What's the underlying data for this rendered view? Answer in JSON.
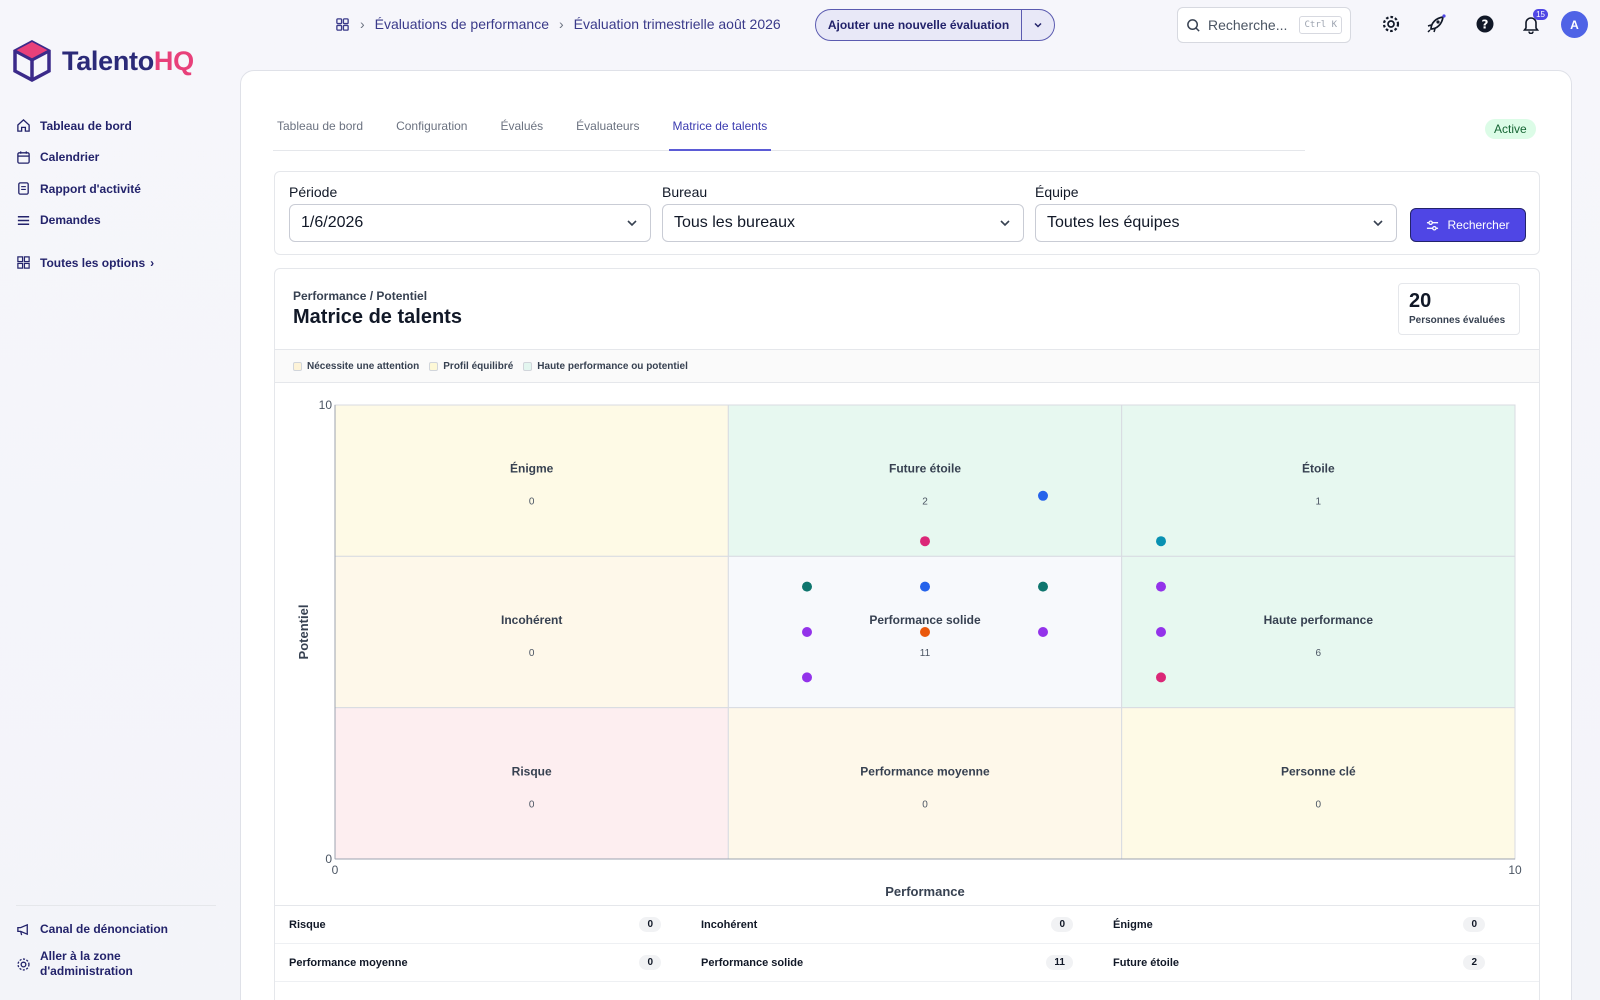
{
  "brand": {
    "name_a": "Talento",
    "name_b": "HQ"
  },
  "sidebar": {
    "items": [
      {
        "label": "Tableau de bord",
        "icon": "home-icon"
      },
      {
        "label": "Calendrier",
        "icon": "calendar-icon"
      },
      {
        "label": "Rapport d'activité",
        "icon": "report-icon"
      },
      {
        "label": "Demandes",
        "icon": "list-icon"
      }
    ],
    "all_options": "Toutes les options",
    "bottom": [
      {
        "label": "Canal de dénonciation",
        "icon": "megaphone-icon"
      },
      {
        "label": "Aller à la zone d'administration",
        "icon": "admin-gear-icon"
      }
    ]
  },
  "breadcrumb": [
    "Évaluations de performance",
    "Évaluation trimestrielle août 2026"
  ],
  "header": {
    "new_eval_label": "Ajouter une nouvelle évaluation",
    "search_placeholder": "Recherche...",
    "search_shortcut": "Ctrl K",
    "notifications_count": "15",
    "avatar_initial": "A"
  },
  "tabs": [
    "Tableau de bord",
    "Configuration",
    "Évalués",
    "Évaluateurs",
    "Matrice de talents"
  ],
  "active_tab": 4,
  "status": "Active",
  "filters": {
    "period": {
      "label": "Période",
      "value": "1/6/2026"
    },
    "office": {
      "label": "Bureau",
      "value": "Tous les bureaux"
    },
    "team": {
      "label": "Équipe",
      "value": "Toutes les équipes"
    },
    "search_button": "Rechercher"
  },
  "card": {
    "subtitle": "Performance / Potentiel",
    "title": "Matrice de talents",
    "count": "20",
    "count_label": "Personnes évaluées"
  },
  "legend": [
    {
      "label": "Nécessite une attention",
      "color": "#fdf3d8"
    },
    {
      "label": "Profil équilibré",
      "color": "#fdf8d6"
    },
    {
      "label": "Haute performance ou potentiel",
      "color": "#e3f6ef"
    }
  ],
  "chart_data": {
    "type": "scatter",
    "xlabel": "Performance",
    "ylabel": "Potentiel",
    "xlim": [
      0,
      10
    ],
    "ylim": [
      0,
      10
    ],
    "cells": [
      {
        "name": "Énigme",
        "count": "0",
        "col": 0,
        "row": 2,
        "color": "#fefae6"
      },
      {
        "name": "Future étoile",
        "count": "2",
        "col": 1,
        "row": 2,
        "color": "#e7f8f0"
      },
      {
        "name": "Étoile",
        "count": "1",
        "col": 2,
        "row": 2,
        "color": "#e7f8f0"
      },
      {
        "name": "Incohérent",
        "count": "0",
        "col": 0,
        "row": 1,
        "color": "#fef8ea"
      },
      {
        "name": "Performance solide",
        "count": "11",
        "col": 1,
        "row": 1,
        "color": "#f7f9fc"
      },
      {
        "name": "Haute performance",
        "count": "6",
        "col": 2,
        "row": 1,
        "color": "#e7f8f0"
      },
      {
        "name": "Risque",
        "count": "0",
        "col": 0,
        "row": 0,
        "color": "#fdeef0"
      },
      {
        "name": "Performance moyenne",
        "count": "0",
        "col": 1,
        "row": 0,
        "color": "#fef8ea"
      },
      {
        "name": "Personne clé",
        "count": "0",
        "col": 2,
        "row": 0,
        "color": "#fefae6"
      }
    ],
    "points": [
      {
        "x": 6.0,
        "y": 8.0,
        "color": "#2563eb"
      },
      {
        "x": 5.0,
        "y": 7.0,
        "color": "#db2777"
      },
      {
        "x": 7.0,
        "y": 7.0,
        "color": "#0891b2"
      },
      {
        "x": 4.0,
        "y": 6.0,
        "color": "#0f766e"
      },
      {
        "x": 5.0,
        "y": 6.0,
        "color": "#2563eb"
      },
      {
        "x": 6.0,
        "y": 6.0,
        "color": "#0f766e"
      },
      {
        "x": 7.0,
        "y": 6.0,
        "color": "#9333ea"
      },
      {
        "x": 4.0,
        "y": 5.0,
        "color": "#9333ea"
      },
      {
        "x": 5.0,
        "y": 5.0,
        "color": "#ea580c"
      },
      {
        "x": 6.0,
        "y": 5.0,
        "color": "#9333ea"
      },
      {
        "x": 7.0,
        "y": 5.0,
        "color": "#9333ea"
      },
      {
        "x": 4.0,
        "y": 4.0,
        "color": "#9333ea"
      },
      {
        "x": 7.0,
        "y": 4.0,
        "color": "#db2777"
      }
    ]
  },
  "summary": [
    [
      {
        "name": "Risque",
        "count": "0"
      },
      {
        "name": "Incohérent",
        "count": "0"
      },
      {
        "name": "Énigme",
        "count": "0"
      }
    ],
    [
      {
        "name": "Performance moyenne",
        "count": "0"
      },
      {
        "name": "Performance solide",
        "count": "11"
      },
      {
        "name": "Future étoile",
        "count": "2"
      }
    ]
  ]
}
